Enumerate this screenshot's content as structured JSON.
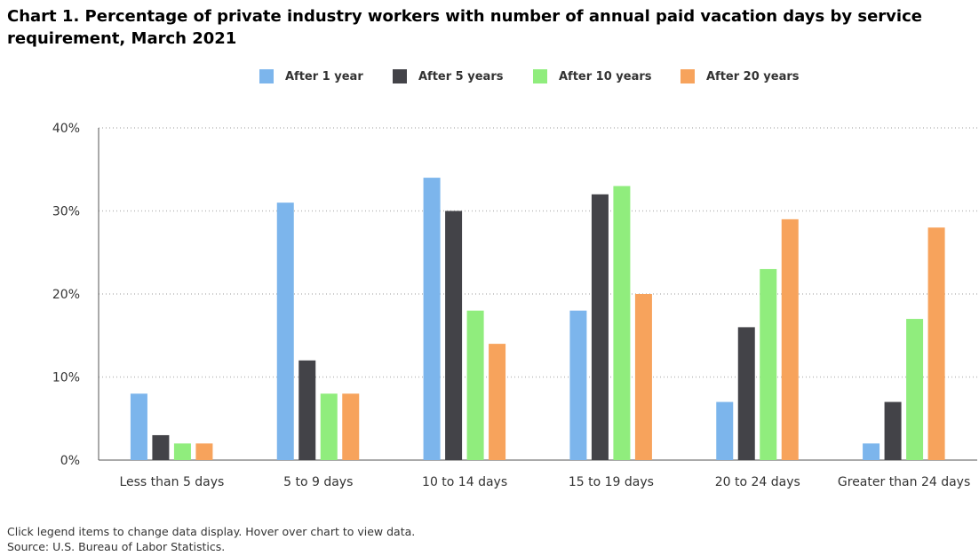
{
  "title": "Chart 1. Percentage of private industry workers with number of annual paid vacation days by service requirement, March 2021",
  "footer": {
    "note": "Click legend items to change data display. Hover over chart to view data.",
    "source": "Source: U.S. Bureau of Labor Statistics."
  },
  "chart_data": {
    "type": "bar",
    "title": "Chart 1. Percentage of private industry workers with number of annual paid vacation days by service requirement, March 2021",
    "xlabel": "",
    "ylabel": "",
    "ylim": [
      0,
      40
    ],
    "yticks": [
      "0%",
      "10%",
      "20%",
      "30%",
      "40%"
    ],
    "grid": true,
    "legend_position": "top",
    "categories": [
      "Less than 5 days",
      "5 to 9 days",
      "10 to 14 days",
      "15 to 19 days",
      "20 to 24 days",
      "Greater than 24 days"
    ],
    "series": [
      {
        "name": "After 1 year",
        "color": "#7cb5ec",
        "values": [
          8,
          31,
          34,
          18,
          7,
          2
        ]
      },
      {
        "name": "After 5 years",
        "color": "#434348",
        "values": [
          3,
          12,
          30,
          32,
          16,
          7
        ]
      },
      {
        "name": "After 10 years",
        "color": "#90ed7d",
        "values": [
          2,
          8,
          18,
          33,
          23,
          17
        ]
      },
      {
        "name": "After 20 years",
        "color": "#f7a35c",
        "values": [
          2,
          8,
          14,
          20,
          29,
          28
        ]
      }
    ]
  }
}
